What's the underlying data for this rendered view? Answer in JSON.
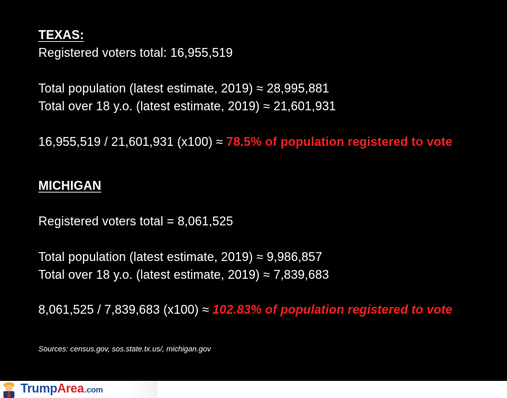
{
  "texas": {
    "heading": "TEXAS:",
    "registered": "Registered voters total: 16,955,519",
    "total_population": "Total population (latest estimate, 2019) ≈ 28,995,881",
    "over_18": "Total over 18 y.o. (latest estimate, 2019) ≈ 21,601,931",
    "calc_prefix": "16,955,519 / 21,601,931 (x100) ≈ ",
    "calc_result": "78.5%  of population registered to vote"
  },
  "michigan": {
    "heading": "MICHIGAN",
    "registered": "Registered voters total = 8,061,525",
    "total_population": "Total population (latest estimate, 2019) ≈ 9,986,857",
    "over_18": "Total over 18 y.o. (latest estimate, 2019) ≈ 7,839,683",
    "calc_prefix": "8,061,525 / 7,839,683 (x100) ≈ ",
    "calc_result": "102.83% of population registered to vote"
  },
  "sources": "Sources: census.gov, sos.state.tx.us/, michigan.gov",
  "footer": {
    "logo_trump": "Trump",
    "logo_area": "Area",
    "logo_dotcom": ".com"
  },
  "colors": {
    "highlight": "#ff1f1f",
    "logo_blue": "#1f4fa3",
    "logo_red": "#d8262e"
  }
}
